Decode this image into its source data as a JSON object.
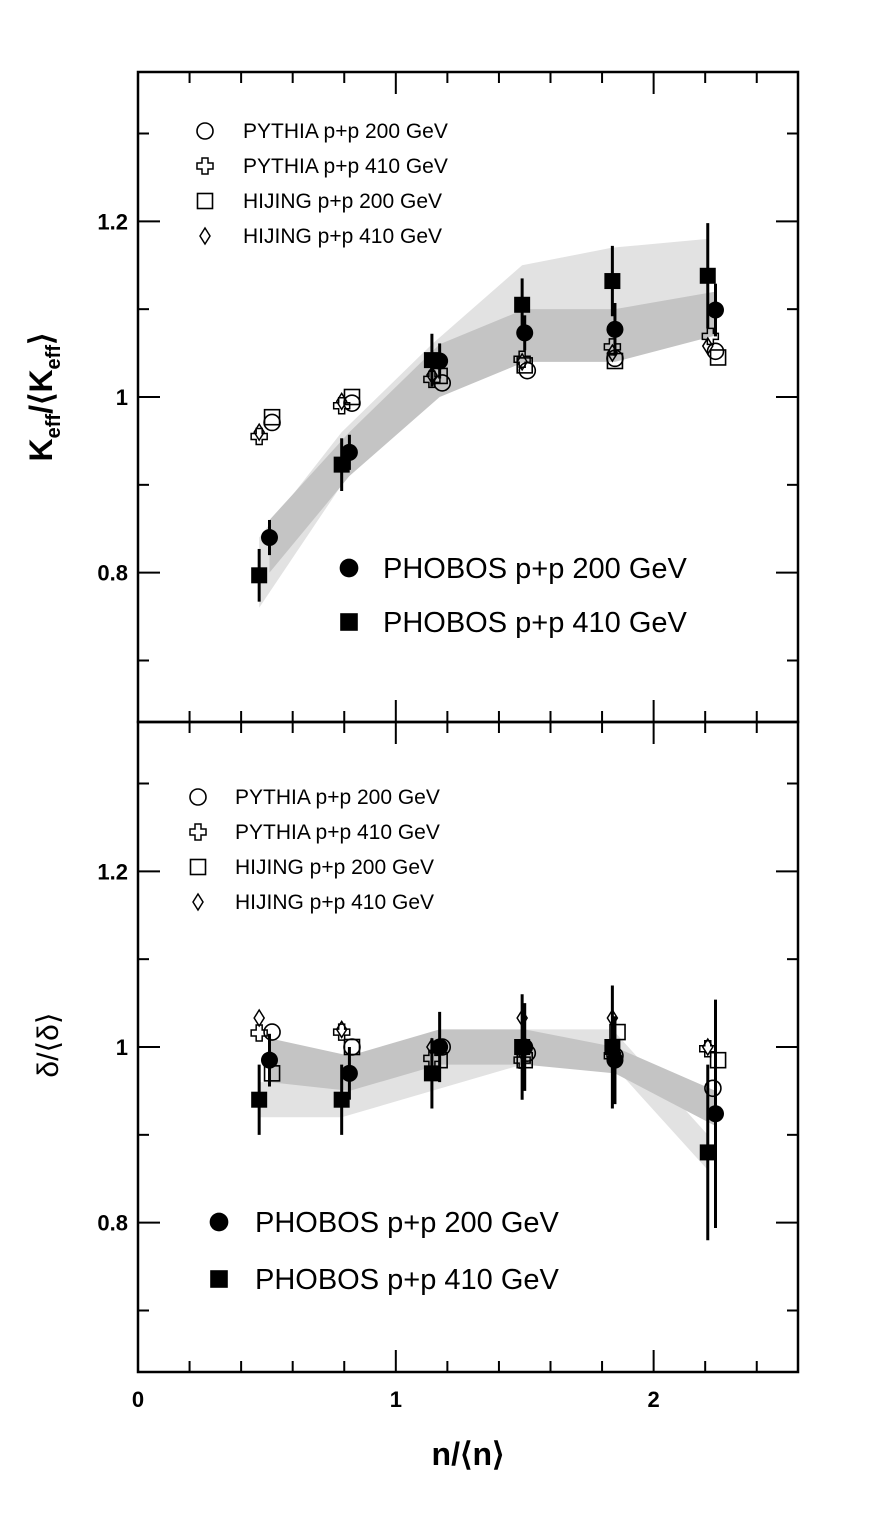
{
  "chart_data": [
    {
      "type": "scatter",
      "panel": "top",
      "ylabel": {
        "main": "K",
        "sub": "eff",
        "sep": "/⟨K",
        "close": "⟩"
      },
      "ylim": [
        0.63,
        1.37
      ],
      "yticks": [
        0.8,
        1,
        1.2
      ],
      "ytick_labels": [
        "0.8",
        "1",
        "1.2"
      ],
      "legend_models": [
        {
          "label": "PYTHIA p+p 200 GeV",
          "marker": "open-circle"
        },
        {
          "label": "PYTHIA p+p 410 GeV",
          "marker": "open-cross"
        },
        {
          "label": "HIJING p+p 200 GeV",
          "marker": "open-square"
        },
        {
          "label": "HIJING p+p 410 GeV",
          "marker": "open-diamond"
        }
      ],
      "legend_data": [
        {
          "label": "PHOBOS p+p 200 GeV",
          "marker": "filled-circle"
        },
        {
          "label": "PHOBOS p+p 410 GeV",
          "marker": "filled-square"
        }
      ],
      "bands": [
        {
          "series": "PHOBOS p+p 410 GeV",
          "color": "#e2e2e2",
          "x": [
            0.47,
            0.79,
            1.14,
            1.49,
            1.84,
            2.21
          ],
          "lo": [
            0.76,
            0.9,
            1.04,
            1.06,
            1.06,
            1.08
          ],
          "hi": [
            0.84,
            0.96,
            1.06,
            1.15,
            1.17,
            1.18
          ]
        },
        {
          "series": "PHOBOS p+p 200 GeV",
          "color": "#c4c4c4",
          "x": [
            0.51,
            0.82,
            1.17,
            1.5,
            1.85,
            2.24
          ],
          "lo": [
            0.8,
            0.91,
            1.0,
            1.04,
            1.04,
            1.07
          ],
          "hi": [
            0.86,
            0.96,
            1.06,
            1.1,
            1.1,
            1.12
          ]
        }
      ],
      "series": [
        {
          "name": "PHOBOS p+p 410 GeV",
          "marker": "filled-square",
          "x": [
            0.47,
            0.79,
            1.14,
            1.49,
            1.84,
            2.21
          ],
          "y": [
            0.797,
            0.923,
            1.042,
            1.105,
            1.132,
            1.138
          ],
          "err": [
            0.03,
            0.03,
            0.03,
            0.03,
            0.04,
            0.06
          ]
        },
        {
          "name": "PHOBOS p+p 200 GeV",
          "marker": "filled-circle",
          "x": [
            0.51,
            0.82,
            1.17,
            1.5,
            1.85,
            2.24
          ],
          "y": [
            0.84,
            0.937,
            1.041,
            1.073,
            1.077,
            1.099
          ],
          "err": [
            0.02,
            0.02,
            0.02,
            0.02,
            0.03,
            0.03
          ]
        },
        {
          "name": "PYTHIA p+p 200 GeV",
          "marker": "open-circle",
          "x": [
            0.52,
            0.83,
            1.18,
            1.51,
            1.85,
            2.24
          ],
          "y": [
            0.971,
            0.993,
            1.016,
            1.03,
            1.044,
            1.052
          ]
        },
        {
          "name": "PYTHIA p+p 410 GeV",
          "marker": "open-cross",
          "x": [
            0.47,
            0.79,
            1.14,
            1.49,
            1.84,
            2.22
          ],
          "y": [
            0.955,
            0.99,
            1.02,
            1.043,
            1.057,
            1.069
          ]
        },
        {
          "name": "HIJING p+p 200 GeV",
          "marker": "open-square",
          "x": [
            0.52,
            0.83,
            1.17,
            1.5,
            1.85,
            2.25
          ],
          "y": [
            0.977,
            1.0,
            1.024,
            1.036,
            1.041,
            1.045
          ]
        },
        {
          "name": "HIJING p+p 410 GeV",
          "marker": "open-diamond",
          "x": [
            0.47,
            0.79,
            1.14,
            1.49,
            1.84,
            2.21
          ],
          "y": [
            0.96,
            0.995,
            1.025,
            1.04,
            1.05,
            1.058
          ]
        }
      ]
    },
    {
      "type": "scatter",
      "panel": "bottom",
      "ylabel": {
        "text": "δ/⟨δ⟩"
      },
      "xlabel": "n/⟨n⟩",
      "xlim": [
        0,
        2.56
      ],
      "xticks": [
        0,
        1,
        2
      ],
      "xtick_labels": [
        "0",
        "1",
        "2"
      ],
      "ylim": [
        0.63,
        1.37
      ],
      "yticks": [
        0.8,
        1,
        1.2
      ],
      "ytick_labels": [
        "0.8",
        "1",
        "1.2"
      ],
      "legend_models": [
        {
          "label": "PYTHIA p+p 200 GeV",
          "marker": "open-circle"
        },
        {
          "label": "PYTHIA p+p 410 GeV",
          "marker": "open-cross"
        },
        {
          "label": "HIJING p+p 200 GeV",
          "marker": "open-square"
        },
        {
          "label": "HIJING p+p 410 GeV",
          "marker": "open-diamond"
        }
      ],
      "legend_data": [
        {
          "label": "PHOBOS p+p 200 GeV",
          "marker": "filled-circle"
        },
        {
          "label": "PHOBOS p+p 410 GeV",
          "marker": "filled-square"
        }
      ],
      "bands": [
        {
          "series": "PHOBOS p+p 410 GeV",
          "color": "#e2e2e2",
          "x": [
            0.47,
            0.79,
            1.14,
            1.49,
            1.84,
            2.21
          ],
          "lo": [
            0.92,
            0.92,
            0.95,
            0.98,
            0.98,
            0.86
          ],
          "hi": [
            0.96,
            0.96,
            1.0,
            1.02,
            1.02,
            0.9
          ]
        },
        {
          "series": "PHOBOS p+p 200 GeV",
          "color": "#c4c4c4",
          "x": [
            0.51,
            0.82,
            1.17,
            1.5,
            1.85,
            2.24
          ],
          "lo": [
            0.96,
            0.95,
            0.98,
            0.98,
            0.97,
            0.91
          ],
          "hi": [
            1.01,
            0.99,
            1.02,
            1.02,
            1.0,
            0.95
          ]
        }
      ],
      "series": [
        {
          "name": "PHOBOS p+p 410 GeV",
          "marker": "filled-square",
          "x": [
            0.47,
            0.79,
            1.14,
            1.49,
            1.84,
            2.21
          ],
          "y": [
            0.94,
            0.94,
            0.97,
            1.0,
            1.0,
            0.88
          ],
          "err": [
            0.04,
            0.04,
            0.04,
            0.06,
            0.07,
            0.1
          ]
        },
        {
          "name": "PHOBOS p+p 200 GeV",
          "marker": "filled-circle",
          "x": [
            0.51,
            0.82,
            1.17,
            1.5,
            1.85,
            2.24
          ],
          "y": [
            0.985,
            0.97,
            1.0,
            1.0,
            0.985,
            0.924
          ],
          "err": [
            0.03,
            0.03,
            0.04,
            0.05,
            0.05,
            0.13
          ]
        },
        {
          "name": "PYTHIA p+p 200 GeV",
          "marker": "open-circle",
          "x": [
            0.52,
            0.83,
            1.18,
            1.51,
            1.85,
            2.23
          ],
          "y": [
            1.017,
            1.0,
            1.0,
            0.993,
            0.99,
            0.953
          ]
        },
        {
          "name": "PYTHIA p+p 410 GeV",
          "marker": "open-cross",
          "x": [
            0.47,
            0.79,
            1.14,
            1.49,
            1.84,
            2.21
          ],
          "y": [
            1.016,
            1.017,
            0.987,
            0.985,
            0.99,
            0.998
          ]
        },
        {
          "name": "HIJING p+p 200 GeV",
          "marker": "open-square",
          "x": [
            0.52,
            0.83,
            1.17,
            1.5,
            1.86,
            2.25
          ],
          "y": [
            0.97,
            1.0,
            0.985,
            0.985,
            1.017,
            0.985
          ]
        },
        {
          "name": "HIJING p+p 410 GeV",
          "marker": "open-diamond",
          "x": [
            0.47,
            0.79,
            1.14,
            1.49,
            1.84,
            2.21
          ],
          "y": [
            1.033,
            1.02,
            1.0,
            1.033,
            1.033,
            1.0
          ]
        }
      ]
    }
  ]
}
